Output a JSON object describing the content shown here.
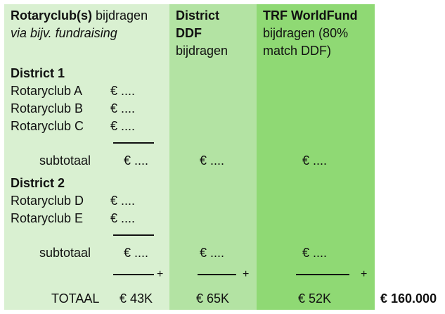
{
  "col1": {
    "header_bold": "Rotaryclub(s)",
    "header_rest": " bijdragen",
    "header_sub": "via bijv. fundraising"
  },
  "col2": {
    "header_line1": "District",
    "header_line2": "DDF",
    "header_line3": "bijdragen"
  },
  "col3": {
    "header_line1": "TRF WorldFund",
    "header_line2": "bijdragen (80%",
    "header_line3": "match DDF)"
  },
  "district1": {
    "title": "District 1",
    "clubs": [
      {
        "name": "Rotaryclub A",
        "amount": "€ ...."
      },
      {
        "name": "Rotaryclub B",
        "amount": "€ ...."
      },
      {
        "name": "Rotaryclub C",
        "amount": "€ ...."
      }
    ],
    "subtotal_label": "subtotaal",
    "subtotal_club": "€ ....",
    "subtotal_ddf": "€ ....",
    "subtotal_wf": "€ ...."
  },
  "district2": {
    "title": "District 2",
    "clubs": [
      {
        "name": "Rotaryclub D",
        "amount": "€ ...."
      },
      {
        "name": "Rotaryclub E",
        "amount": "€ ...."
      }
    ],
    "subtotal_label": "subtotaal",
    "subtotal_club": "€ ....",
    "subtotal_ddf": "€ ....",
    "subtotal_wf": "€ ...."
  },
  "plus_sign": "+",
  "totals": {
    "label": "TOTAAL",
    "club": "€ 43K",
    "ddf": "€ 65K",
    "wf": "€ 52K",
    "grand": "€ 160.000"
  }
}
